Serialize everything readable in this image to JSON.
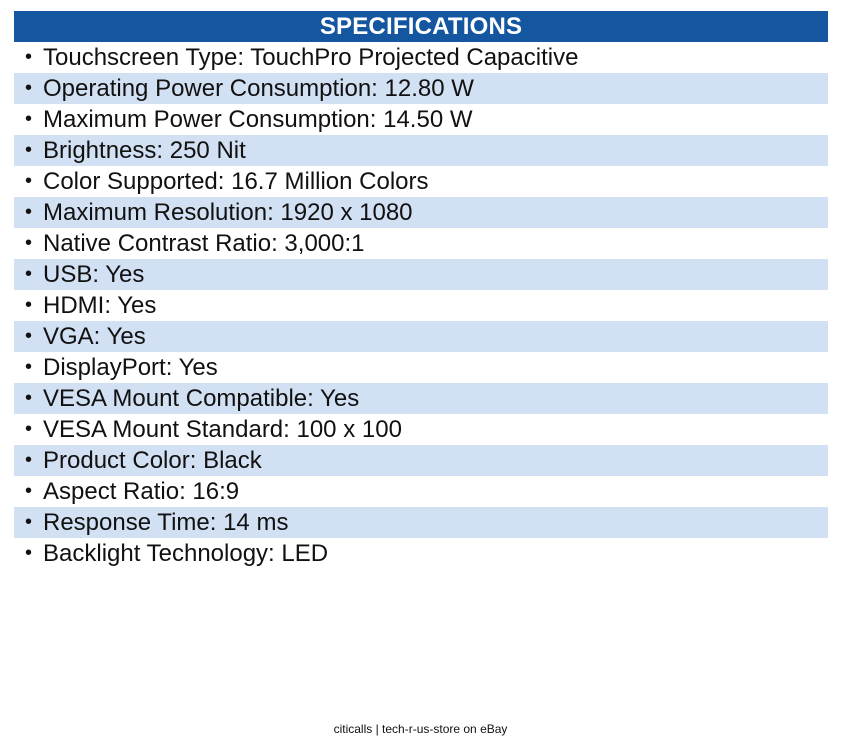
{
  "header": {
    "title": "SPECIFICATIONS"
  },
  "specs": [
    {
      "text": "Touchscreen Type: TouchPro Projected Capacitive"
    },
    {
      "text": "Operating Power Consumption: 12.80 W"
    },
    {
      "text": "Maximum Power Consumption: 14.50 W"
    },
    {
      "text": "Brightness: 250 Nit"
    },
    {
      "text": "Color Supported: 16.7 Million Colors"
    },
    {
      "text": "Maximum Resolution: 1920 x 1080"
    },
    {
      "text": "Native Contrast Ratio: 3,000:1"
    },
    {
      "text": "USB: Yes"
    },
    {
      "text": "HDMI: Yes"
    },
    {
      "text": "VGA: Yes"
    },
    {
      "text": "DisplayPort: Yes"
    },
    {
      "text": "VESA Mount Compatible: Yes"
    },
    {
      "text": "VESA Mount Standard: 100 x 100"
    },
    {
      "text": "Product Color: Black"
    },
    {
      "text": "Aspect Ratio: 16:9"
    },
    {
      "text": "Response Time: 14 ms"
    },
    {
      "text": "Backlight Technology: LED"
    }
  ],
  "bullet": "•",
  "footer": {
    "text": "citicalls | tech-r-us-store on eBay"
  },
  "colors": {
    "header_bg": "#1457a0",
    "header_text": "#ffffff",
    "alt_row_bg": "#d2e0f3"
  }
}
